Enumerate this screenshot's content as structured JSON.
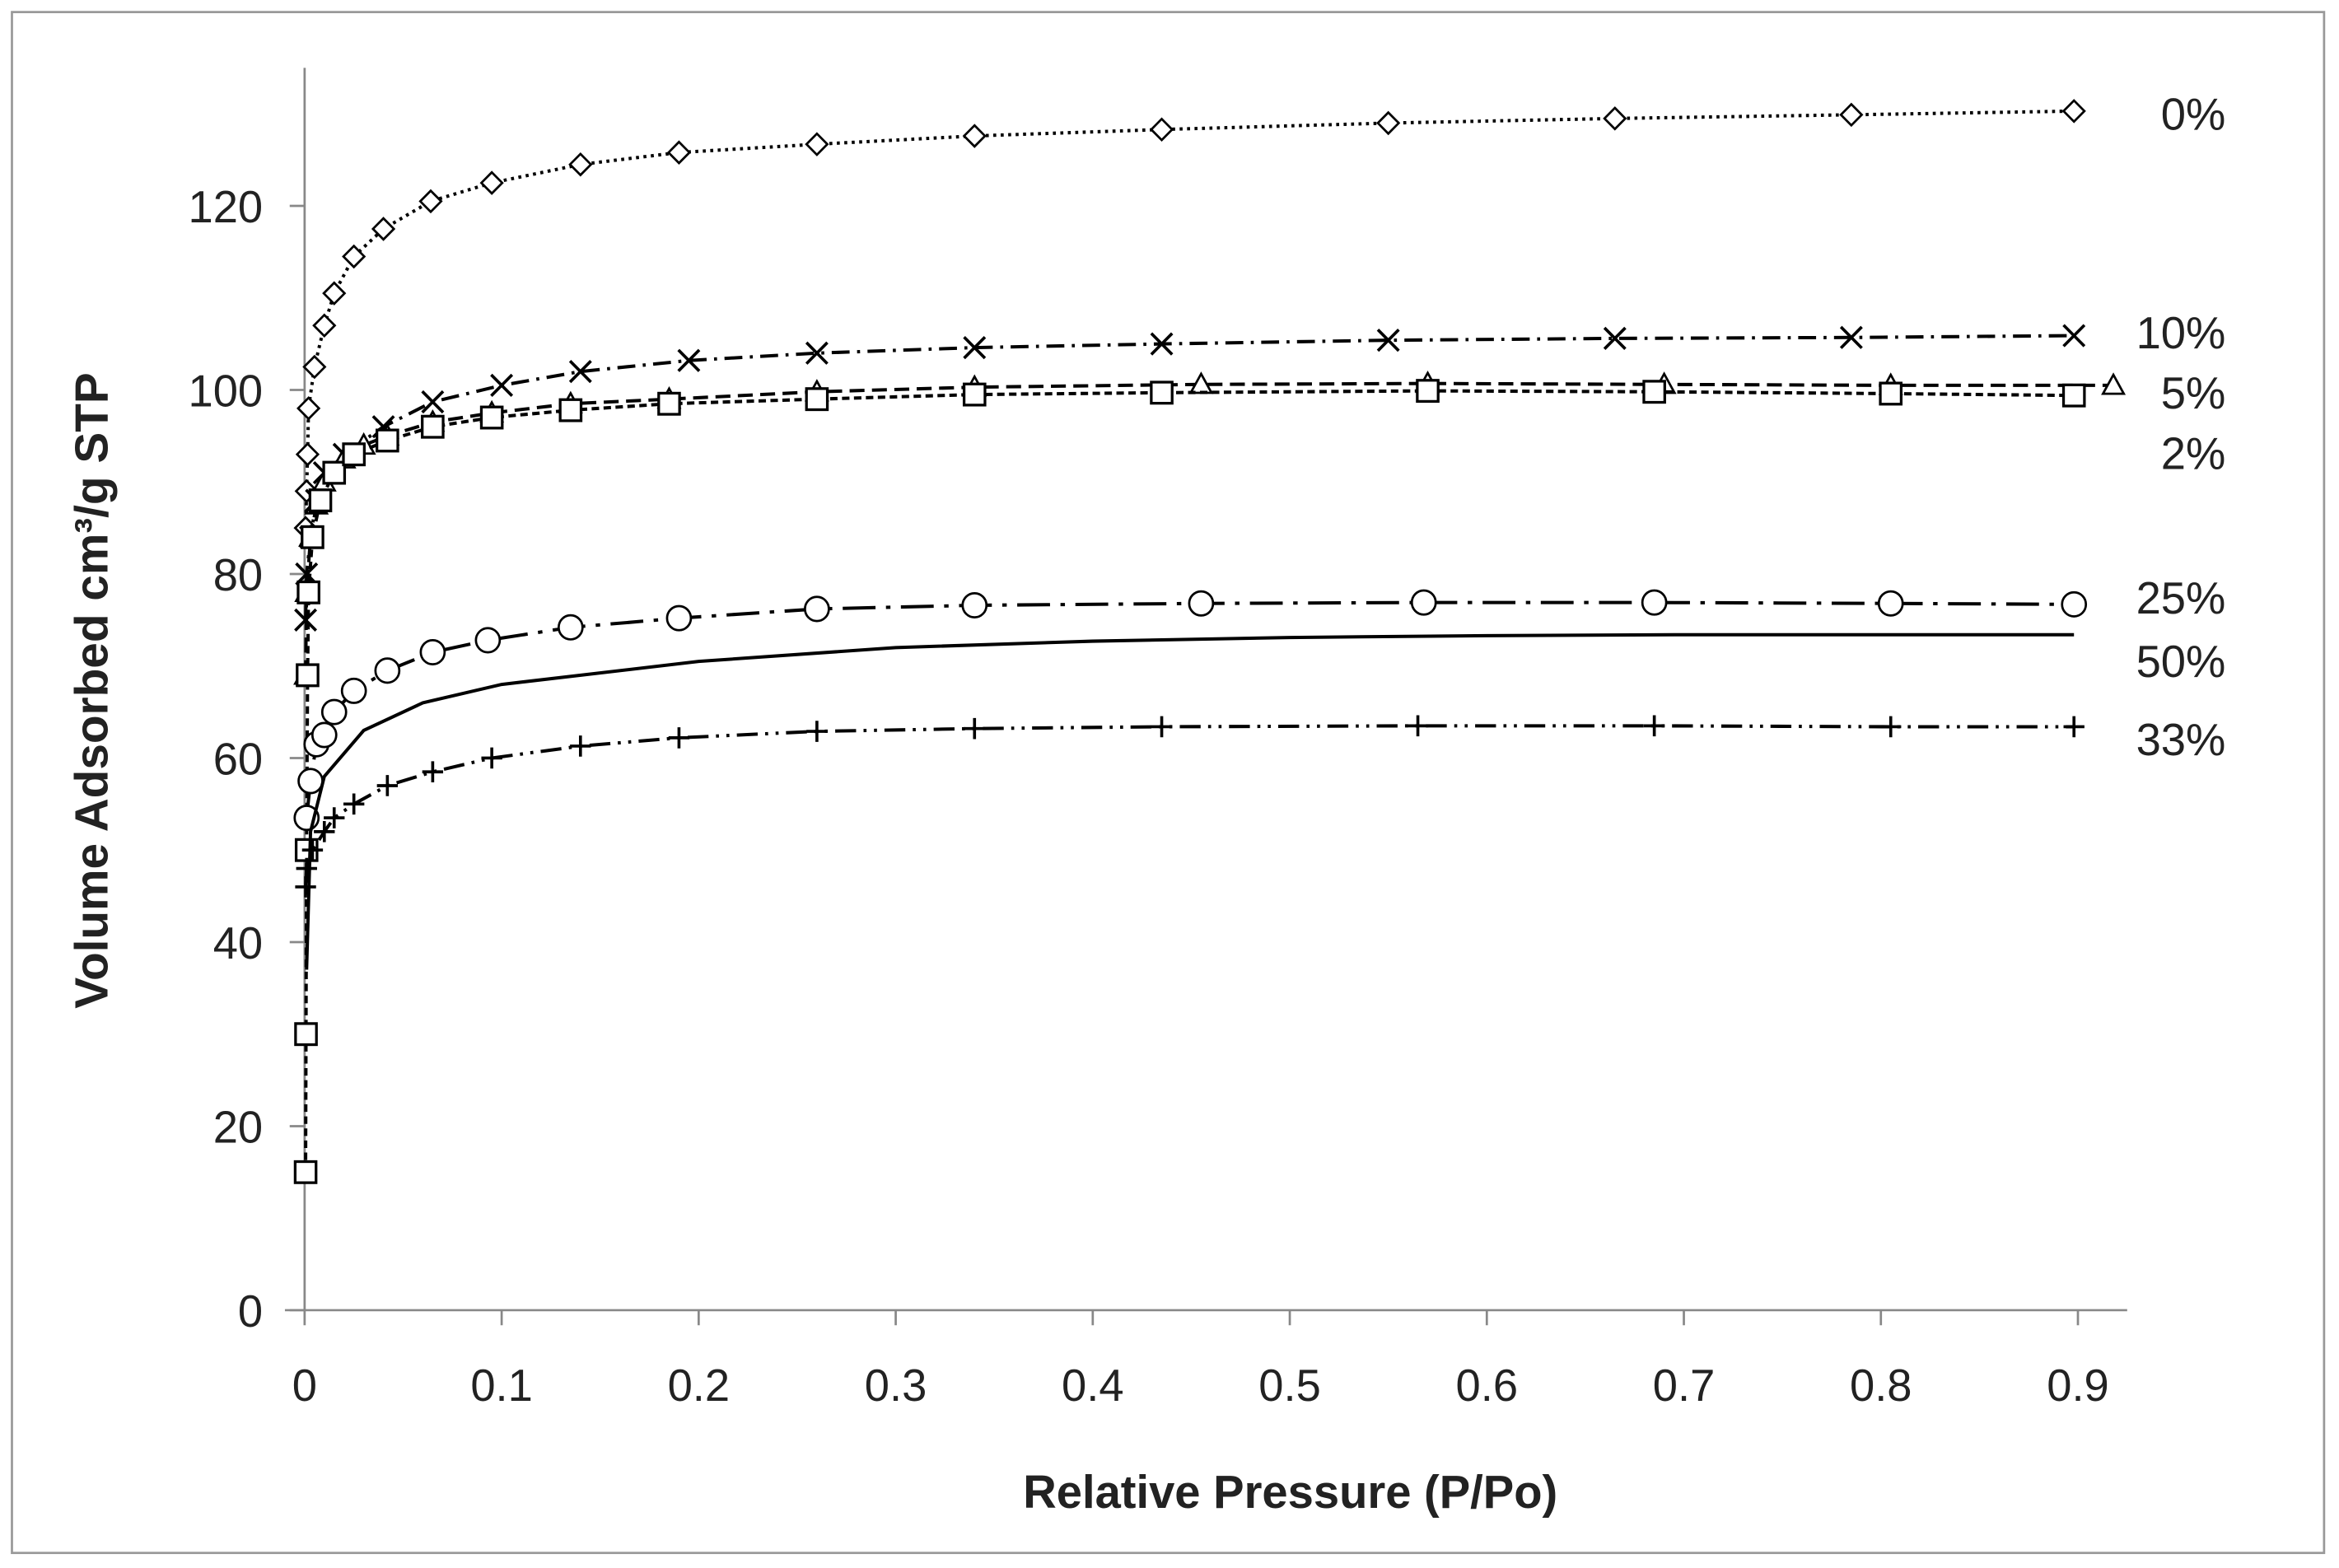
{
  "chart_data": {
    "type": "line",
    "xlabel": "Relative Pressure (P/Po)",
    "ylabel": "Volume Adsorbed cm³/g STP",
    "xlim": [
      -0.01,
      0.925
    ],
    "ylim": [
      0,
      135
    ],
    "xticks": [
      0,
      0.1,
      0.2,
      0.3,
      0.4,
      0.5,
      0.6,
      0.7,
      0.8,
      0.9
    ],
    "yticks": [
      0,
      20,
      40,
      60,
      80,
      100,
      120
    ],
    "color": "#000000",
    "series": [
      {
        "name": "0%",
        "marker": "diamond",
        "dash": "dotted",
        "x": [
          0.0005,
          0.001,
          0.0015,
          0.002,
          0.005,
          0.01,
          0.015,
          0.025,
          0.04,
          0.064,
          0.095,
          0.14,
          0.19,
          0.26,
          0.34,
          0.435,
          0.55,
          0.665,
          0.785,
          0.898
        ],
        "values": [
          85,
          89,
          93,
          98,
          102.5,
          107,
          110.5,
          114.5,
          117.5,
          120.5,
          122.5,
          124.5,
          125.8,
          126.7,
          127.6,
          128.3,
          129,
          129.5,
          129.9,
          130.3
        ]
      },
      {
        "name": "10%",
        "marker": "x",
        "dash": "dashdot",
        "x": [
          0.0005,
          0.001,
          0.003,
          0.006,
          0.01,
          0.02,
          0.04,
          0.065,
          0.1,
          0.14,
          0.195,
          0.26,
          0.34,
          0.435,
          0.55,
          0.665,
          0.785,
          0.898
        ],
        "values": [
          75,
          80,
          84,
          88,
          91,
          93,
          96,
          98.7,
          100.5,
          102,
          103.2,
          104,
          104.6,
          105,
          105.4,
          105.6,
          105.7,
          105.9
        ]
      },
      {
        "name": "5%",
        "marker": "triangle",
        "dash": "dashed",
        "x": [
          0.0005,
          0.001,
          0.003,
          0.006,
          0.01,
          0.02,
          0.03,
          0.042,
          0.065,
          0.095,
          0.135,
          0.185,
          0.26,
          0.34,
          0.455,
          0.57,
          0.69,
          0.805,
          0.918
        ],
        "values": [
          69,
          78,
          84,
          87.5,
          90,
          92.5,
          94,
          95,
          96.5,
          97.5,
          98.5,
          99,
          99.8,
          100.3,
          100.6,
          100.7,
          100.6,
          100.5,
          100.5
        ]
      },
      {
        "name": "2%",
        "marker": "square",
        "dash": "shortdash",
        "x": [
          0.0005,
          0.0007,
          0.001,
          0.0015,
          0.002,
          0.004,
          0.008,
          0.015,
          0.025,
          0.042,
          0.065,
          0.095,
          0.135,
          0.185,
          0.26,
          0.34,
          0.435,
          0.57,
          0.685,
          0.805,
          0.898
        ],
        "values": [
          15,
          30,
          50,
          69,
          78,
          84,
          88,
          91,
          93,
          94.5,
          96,
          97,
          97.8,
          98.5,
          99,
          99.5,
          99.7,
          99.9,
          99.8,
          99.6,
          99.4
        ]
      },
      {
        "name": "25%",
        "marker": "circle",
        "dash": "longdashdot",
        "x": [
          0.001,
          0.003,
          0.006,
          0.01,
          0.015,
          0.025,
          0.042,
          0.065,
          0.093,
          0.135,
          0.19,
          0.26,
          0.34,
          0.455,
          0.568,
          0.685,
          0.805,
          0.898
        ],
        "values": [
          53.5,
          57.5,
          61.5,
          62.5,
          65,
          67.3,
          69.5,
          71.5,
          72.8,
          74.2,
          75.2,
          76.2,
          76.6,
          76.8,
          76.9,
          76.9,
          76.8,
          76.7
        ]
      },
      {
        "name": "50%",
        "marker": "none",
        "dash": "solid",
        "x": [
          0.001,
          0.003,
          0.01,
          0.03,
          0.06,
          0.1,
          0.2,
          0.3,
          0.4,
          0.5,
          0.6,
          0.7,
          0.8,
          0.898
        ],
        "values": [
          37,
          52,
          58,
          63,
          66,
          68,
          70.5,
          72,
          72.7,
          73.1,
          73.3,
          73.4,
          73.4,
          73.4
        ]
      },
      {
        "name": "33%",
        "marker": "plus",
        "dash": "dashdotdot",
        "x": [
          0.0005,
          0.001,
          0.004,
          0.01,
          0.015,
          0.025,
          0.042,
          0.065,
          0.095,
          0.14,
          0.19,
          0.26,
          0.34,
          0.435,
          0.565,
          0.685,
          0.805,
          0.898
        ],
        "values": [
          46,
          48,
          50,
          52,
          53.5,
          55,
          57,
          58.5,
          60,
          61.3,
          62.2,
          62.9,
          63.2,
          63.4,
          63.5,
          63.5,
          63.4,
          63.4
        ]
      }
    ]
  }
}
